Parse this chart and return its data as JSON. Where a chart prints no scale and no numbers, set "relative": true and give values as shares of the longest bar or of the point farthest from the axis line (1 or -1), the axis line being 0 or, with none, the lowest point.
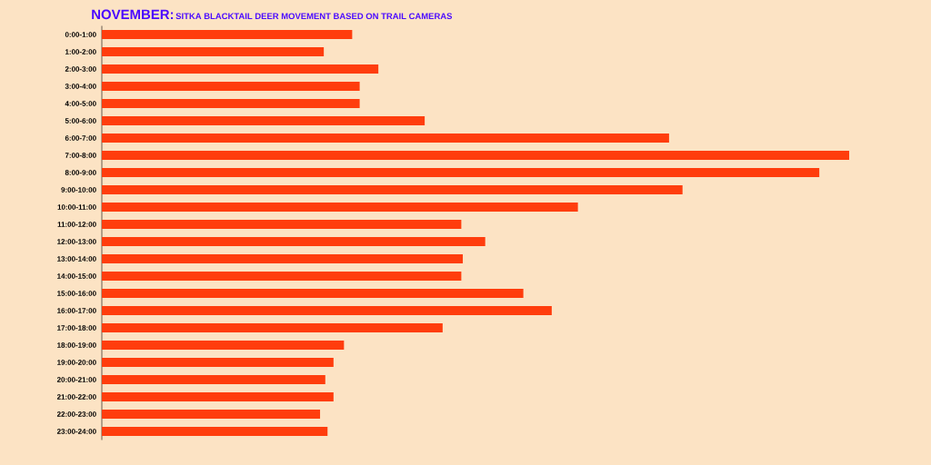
{
  "chart_data": {
    "type": "bar",
    "orientation": "horizontal",
    "relative": true,
    "title": "NOVEMBER:",
    "subtitle": "SITKA BLACKTAIL DEER MOVEMENT BASED ON TRAIL CAMERAS",
    "categories": [
      "0:00-1:00",
      "1:00-2:00",
      "2:00-3:00",
      "3:00-4:00",
      "4:00-5:00",
      "5:00-6:00",
      "6:00-7:00",
      "7:00-8:00",
      "8:00-9:00",
      "9:00-10:00",
      "10:00-11:00",
      "11:00-12:00",
      "12:00-13:00",
      "13:00-14:00",
      "14:00-15:00",
      "15:00-16:00",
      "16:00-17:00",
      "17:00-18:00",
      "18:00-19:00",
      "19:00-20:00",
      "20:00-21:00",
      "21:00-22:00",
      "22:00-23:00",
      "23:00-24:00"
    ],
    "values": [
      0.335,
      0.297,
      0.37,
      0.345,
      0.345,
      0.432,
      0.759,
      1,
      0.96,
      0.777,
      0.637,
      0.481,
      0.513,
      0.483,
      0.481,
      0.564,
      0.602,
      0.456,
      0.324,
      0.31,
      0.299,
      0.31,
      0.292,
      0.302
    ],
    "color": "#ff3d0d"
  }
}
